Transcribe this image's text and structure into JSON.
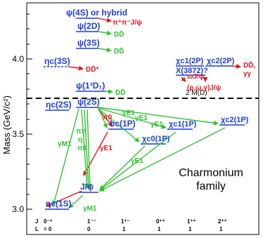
{
  "axis": {
    "ylabel": "Mass (GeV/c²)",
    "ticks": [
      "3.0",
      "3.5",
      "4.0"
    ]
  },
  "states": {
    "psi4s": "ψ(4S) or hybrid",
    "psi2d": "ψ(2D)",
    "psi3s": "ψ(3S)",
    "etac3s": "ηc(3S)",
    "psi13d1": "ψ(1³D₁)",
    "psi2s": "ψ(2S)",
    "etac2s": "ηc(2S)",
    "hc1p": "hc(1P)",
    "chic11p": "χc1(1P)",
    "chic21p": "χc2(1P)",
    "chic01p": "χc0(1P)",
    "jpsi": "J/ψ",
    "etac1s": "ηc(1S)",
    "chic12p": "χc1(2P)",
    "chic22p": "χc2(2P)",
    "x3872": "X(3872)?"
  },
  "decays": {
    "pipijpsi": "π⁺π⁻J/ψ",
    "dd_psi2d": "DD̄",
    "dd_psi3s": "DD̄",
    "ddstar": "DD̄*",
    "dd_13d1": "DD̄",
    "dd_2p": "DD̄,",
    "gammagamma": "γγ",
    "omegajpsi": "ωJ/ψ",
    "rhoomegagamma": "(ρ,ω,γ)J/ψ",
    "pi0": "π0",
    "ge1_top": "γE1",
    "ge1_mid": "γE1",
    "ge1_right": "γE1",
    "ge1_down": "γE1",
    "ge1_red": "γE1",
    "gm1_left": "γM1",
    "gm1_bot": "γM1",
    "pipi": "ππ",
    "eta": "η",
    "pi0_b": "π0"
  },
  "threshold": "2 M(D)",
  "family_title": [
    "Charmonium",
    "family"
  ],
  "jpc": {
    "label": "J",
    "values": [
      "0⁻⁺",
      "1⁻⁻",
      "1⁺⁻",
      "0⁺⁺",
      "1⁺⁺",
      "2⁺⁺"
    ],
    "l_label": "L",
    "l_values": [
      "= 0",
      "0",
      "1",
      "1",
      "1",
      "1"
    ]
  },
  "colors": {
    "state": "#1a3ddb",
    "hadronic": "#e4141b",
    "radiative": "#2cc42c"
  }
}
